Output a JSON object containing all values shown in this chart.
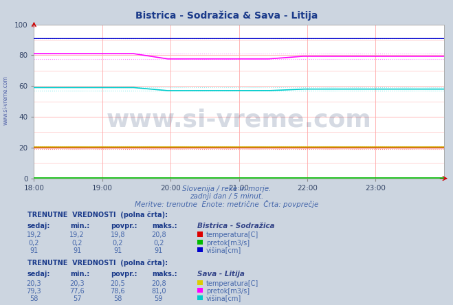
{
  "title": "Bistrica - Sodražica & Sava - Litija",
  "title_color": "#1a3a8a",
  "bg_color": "#ccd5e0",
  "plot_bg_color": "#ffffff",
  "xlim": [
    0,
    288
  ],
  "ylim": [
    0,
    100
  ],
  "yticks": [
    0,
    20,
    40,
    60,
    80,
    100
  ],
  "xtick_labels": [
    "18:00",
    "19:00",
    "20:00",
    "21:00",
    "22:00",
    "23:00"
  ],
  "xtick_positions": [
    0,
    48,
    96,
    144,
    192,
    240
  ],
  "subtitle1": "Slovenija / reke in morje.",
  "subtitle2": "zadnji dan / 5 minut.",
  "subtitle3": "Meritve: trenutne  Enote: metrične  Črta: povprečje",
  "watermark": "www.si-vreme.com",
  "grid_major_color": "#ffaaaa",
  "grid_minor_color": "#ffcccc",
  "note_color": "#4466aa",
  "table_header_color": "#1a3a8a",
  "table_val_color": "#4466aa",
  "legend1_title": "Bistrica - Sodražica",
  "legend1_items": [
    {
      "label": "temperatura[C]",
      "color": "#dd0000"
    },
    {
      "label": "pretok[m3/s]",
      "color": "#00bb00"
    },
    {
      "label": "višina[cm]",
      "color": "#0000cc"
    }
  ],
  "legend2_title": "Sava - Litija",
  "legend2_items": [
    {
      "label": "temperatura[C]",
      "color": "#ddcc00"
    },
    {
      "label": "pretok[m3/s]",
      "color": "#ff00ff"
    },
    {
      "label": "višina[cm]",
      "color": "#00cccc"
    }
  ],
  "col_headers": [
    "sedaj:",
    "min.:",
    "povpr.:",
    "maks.:"
  ],
  "table1_rows": [
    [
      "19,2",
      "19,2",
      "19,8",
      "20,8"
    ],
    [
      "0,2",
      "0,2",
      "0,2",
      "0,2"
    ],
    [
      "91",
      "91",
      "91",
      "91"
    ]
  ],
  "table2_rows": [
    [
      "20,3",
      "20,3",
      "20,5",
      "20,8"
    ],
    [
      "79,3",
      "77,6",
      "78,6",
      "81,0"
    ],
    [
      "58",
      "57",
      "58",
      "59"
    ]
  ]
}
